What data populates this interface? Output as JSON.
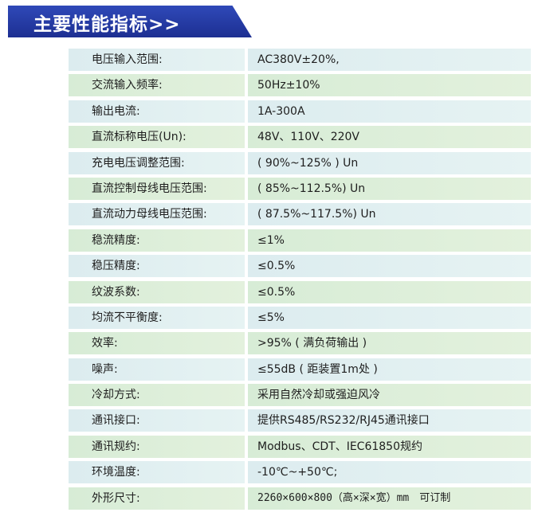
{
  "header": {
    "title": "主要性能指标>>"
  },
  "specs": [
    {
      "label": "电压输入范围:",
      "value": "AC380V±20%,"
    },
    {
      "label": "交流输入频率:",
      "value": "50Hz±10%"
    },
    {
      "label": "输出电流:",
      "value": "1A-300A"
    },
    {
      "label": "直流标称电压(Un):",
      "value": "48V、110V、220V"
    },
    {
      "label": "充电电压调整范围:",
      "value": "( 90%~125% ) Un"
    },
    {
      "label": "直流控制母线电压范围:",
      "value": "( 85%~112.5%) Un"
    },
    {
      "label": "直流动力母线电压范围:",
      "value": "( 87.5%~117.5%) Un"
    },
    {
      "label": "稳流精度:",
      "value": "≤1%"
    },
    {
      "label": "稳压精度:",
      "value": "≤0.5%"
    },
    {
      "label": "纹波系数:",
      "value": "≤0.5%"
    },
    {
      "label": "均流不平衡度:",
      "value": "≤5%"
    },
    {
      "label": "效率:",
      "value": ">95% ( 满负荷输出 )"
    },
    {
      "label": "噪声:",
      "value": "≤55dB ( 距装置1m处 )"
    },
    {
      "label": "冷却方式:",
      "value": "采用自然冷却或强迫风冷"
    },
    {
      "label": "通讯接口:",
      "value": "提供RS485/RS232/RJ45通讯接口"
    },
    {
      "label": "通讯规约:",
      "value": "Modbus、CDT、IEC61850规约"
    },
    {
      "label": "环境温度:",
      "value": "-10℃~+50℃;"
    },
    {
      "label": "外形尺寸:",
      "value": "2260×600×800（高×深×宽）mm　可订制"
    }
  ],
  "colors": {
    "banner": "#2438a3",
    "row_green": "#d7ecd6",
    "row_blue": "#dcecef",
    "text": "#1e1e1e"
  }
}
